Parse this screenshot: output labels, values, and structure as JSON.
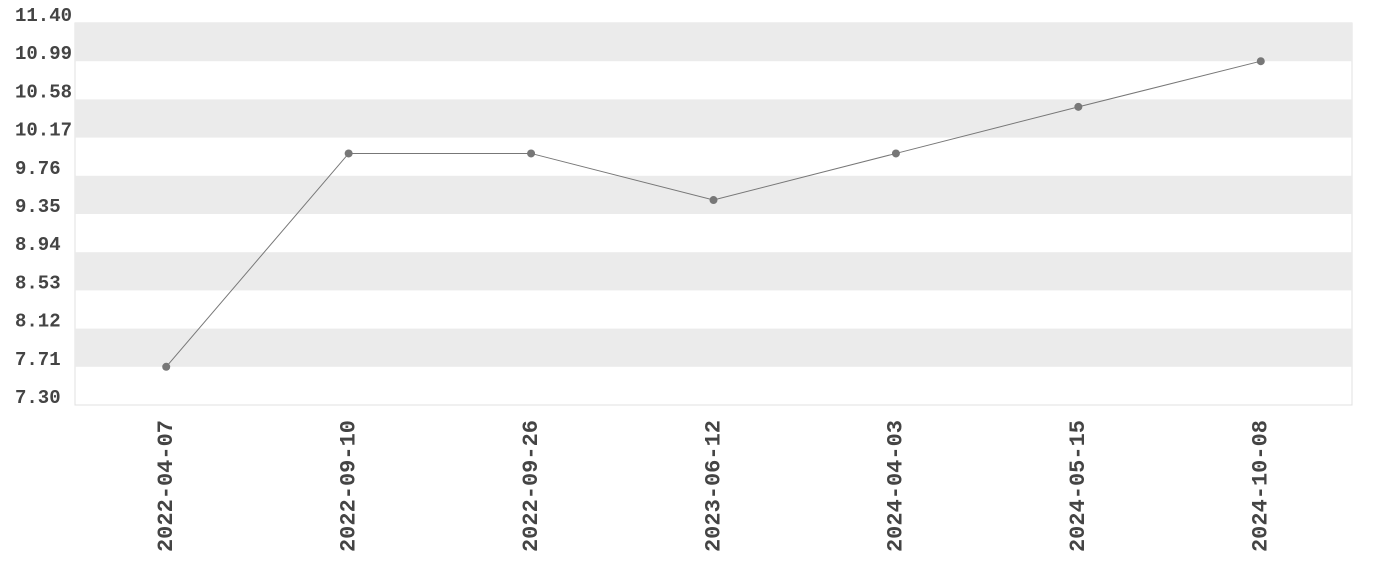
{
  "chart_data": {
    "type": "line",
    "categories": [
      "2022-04-07",
      "2022-09-10",
      "2022-09-26",
      "2023-06-12",
      "2024-04-03",
      "2024-05-15",
      "2024-10-08"
    ],
    "values": [
      7.71,
      10.0,
      10.0,
      9.5,
      10.0,
      10.5,
      10.99
    ],
    "color": "#777777",
    "ylim": [
      7.3,
      11.4
    ],
    "yticks": [
      {
        "value": 7.3,
        "label": "7.30"
      },
      7.71,
      8.12,
      8.53,
      8.94,
      9.35,
      9.76,
      10.17,
      10.58,
      10.99,
      {
        "value": 11.4,
        "label": "11.40"
      }
    ],
    "grid": true
  }
}
